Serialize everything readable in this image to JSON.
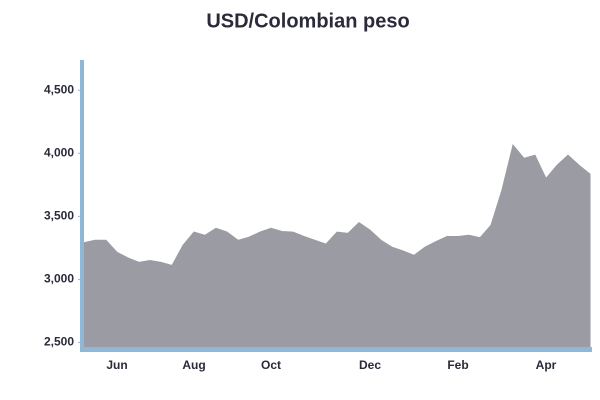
{
  "chart_data": {
    "type": "area",
    "title": "USD/Colombian peso",
    "categories": [
      null,
      null,
      null,
      "Jun",
      null,
      null,
      null,
      null,
      null,
      null,
      "Aug",
      null,
      null,
      null,
      null,
      null,
      null,
      "Oct",
      null,
      null,
      null,
      null,
      null,
      null,
      null,
      null,
      "Dec",
      null,
      null,
      null,
      null,
      null,
      null,
      null,
      "Feb",
      null,
      null,
      null,
      null,
      null,
      null,
      null,
      "Apr",
      null,
      null,
      null,
      null
    ],
    "values": [
      3290,
      3310,
      3310,
      3215,
      3170,
      3135,
      3150,
      3135,
      3110,
      3270,
      3375,
      3350,
      3405,
      3375,
      3310,
      3335,
      3375,
      3405,
      3380,
      3375,
      3340,
      3310,
      3280,
      3375,
      3365,
      3450,
      3390,
      3310,
      3255,
      3225,
      3190,
      3255,
      3300,
      3340,
      3340,
      3350,
      3330,
      3430,
      3710,
      4065,
      3960,
      3985,
      3800,
      3905,
      3985,
      3905,
      3835
    ],
    "color": "#9a9ba3",
    "ylim": [
      2440,
      4740
    ],
    "yticks": [
      {
        "value": 2500,
        "label": "2,500"
      },
      {
        "value": 3000,
        "label": "3,000"
      },
      {
        "value": 3500,
        "label": "3,500"
      },
      {
        "value": 4000,
        "label": "4,000"
      },
      {
        "value": 4500,
        "label": "4,500"
      }
    ]
  }
}
